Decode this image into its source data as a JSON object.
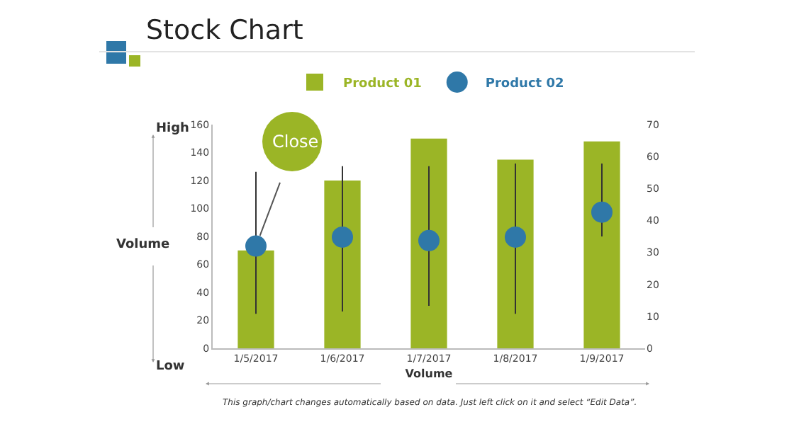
{
  "chart_data": {
    "type": "bar",
    "title": "Stock Chart",
    "xlabel": "Volume",
    "ylabel": "Volume",
    "categories": [
      "1/5/2017",
      "1/6/2017",
      "1/7/2017",
      "1/8/2017",
      "1/9/2017"
    ],
    "series": [
      {
        "name": "Product 01",
        "color": "#9bb526",
        "values": [
          70,
          120,
          150,
          135,
          148
        ]
      },
      {
        "name": "Product 02",
        "color": "#2f78a8",
        "type": "scatter",
        "axis": "y2",
        "marker": "circle",
        "values": [
          32,
          34.8,
          33.7,
          34.8,
          42.6
        ],
        "errors": [
          [
            10.8,
            55.2
          ],
          [
            11.5,
            57
          ],
          [
            13.3,
            57
          ],
          [
            10.8,
            57.8
          ],
          [
            35,
            57.8
          ]
        ]
      }
    ],
    "ylim": [
      0,
      160
    ],
    "yticks": [
      0,
      20,
      40,
      60,
      80,
      100,
      120,
      140,
      160
    ],
    "y2lim": [
      0,
      70
    ],
    "y2ticks": [
      0,
      10,
      20,
      30,
      40,
      50,
      60,
      70
    ],
    "annotations": [
      "High",
      "Low",
      {
        "text": "Close",
        "x": "1/5/2017",
        "y": 73
      },
      "This graph/chart changes automatically based on data. Just left click on it and select “Edit Data”."
    ],
    "legend": "top",
    "grid": false
  }
}
